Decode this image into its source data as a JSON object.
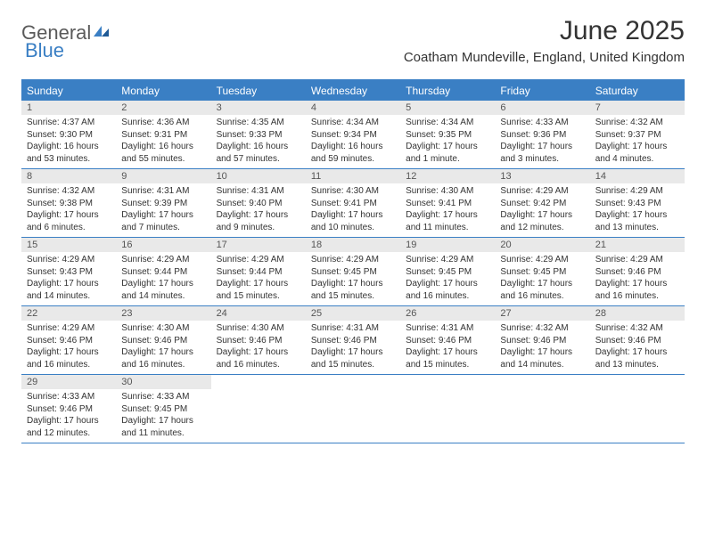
{
  "logo": {
    "text1": "General",
    "text2": "Blue"
  },
  "title": "June 2025",
  "location": "Coatham Mundeville, England, United Kingdom",
  "colors": {
    "accent": "#3a7fc4",
    "dayBg": "#e9e9e9",
    "text": "#333333",
    "white": "#ffffff"
  },
  "dayNames": [
    "Sunday",
    "Monday",
    "Tuesday",
    "Wednesday",
    "Thursday",
    "Friday",
    "Saturday"
  ],
  "weeks": [
    [
      {
        "n": "1",
        "sr": "4:37 AM",
        "ss": "9:30 PM",
        "dl": "16 hours and 53 minutes."
      },
      {
        "n": "2",
        "sr": "4:36 AM",
        "ss": "9:31 PM",
        "dl": "16 hours and 55 minutes."
      },
      {
        "n": "3",
        "sr": "4:35 AM",
        "ss": "9:33 PM",
        "dl": "16 hours and 57 minutes."
      },
      {
        "n": "4",
        "sr": "4:34 AM",
        "ss": "9:34 PM",
        "dl": "16 hours and 59 minutes."
      },
      {
        "n": "5",
        "sr": "4:34 AM",
        "ss": "9:35 PM",
        "dl": "17 hours and 1 minute."
      },
      {
        "n": "6",
        "sr": "4:33 AM",
        "ss": "9:36 PM",
        "dl": "17 hours and 3 minutes."
      },
      {
        "n": "7",
        "sr": "4:32 AM",
        "ss": "9:37 PM",
        "dl": "17 hours and 4 minutes."
      }
    ],
    [
      {
        "n": "8",
        "sr": "4:32 AM",
        "ss": "9:38 PM",
        "dl": "17 hours and 6 minutes."
      },
      {
        "n": "9",
        "sr": "4:31 AM",
        "ss": "9:39 PM",
        "dl": "17 hours and 7 minutes."
      },
      {
        "n": "10",
        "sr": "4:31 AM",
        "ss": "9:40 PM",
        "dl": "17 hours and 9 minutes."
      },
      {
        "n": "11",
        "sr": "4:30 AM",
        "ss": "9:41 PM",
        "dl": "17 hours and 10 minutes."
      },
      {
        "n": "12",
        "sr": "4:30 AM",
        "ss": "9:41 PM",
        "dl": "17 hours and 11 minutes."
      },
      {
        "n": "13",
        "sr": "4:29 AM",
        "ss": "9:42 PM",
        "dl": "17 hours and 12 minutes."
      },
      {
        "n": "14",
        "sr": "4:29 AM",
        "ss": "9:43 PM",
        "dl": "17 hours and 13 minutes."
      }
    ],
    [
      {
        "n": "15",
        "sr": "4:29 AM",
        "ss": "9:43 PM",
        "dl": "17 hours and 14 minutes."
      },
      {
        "n": "16",
        "sr": "4:29 AM",
        "ss": "9:44 PM",
        "dl": "17 hours and 14 minutes."
      },
      {
        "n": "17",
        "sr": "4:29 AM",
        "ss": "9:44 PM",
        "dl": "17 hours and 15 minutes."
      },
      {
        "n": "18",
        "sr": "4:29 AM",
        "ss": "9:45 PM",
        "dl": "17 hours and 15 minutes."
      },
      {
        "n": "19",
        "sr": "4:29 AM",
        "ss": "9:45 PM",
        "dl": "17 hours and 16 minutes."
      },
      {
        "n": "20",
        "sr": "4:29 AM",
        "ss": "9:45 PM",
        "dl": "17 hours and 16 minutes."
      },
      {
        "n": "21",
        "sr": "4:29 AM",
        "ss": "9:46 PM",
        "dl": "17 hours and 16 minutes."
      }
    ],
    [
      {
        "n": "22",
        "sr": "4:29 AM",
        "ss": "9:46 PM",
        "dl": "17 hours and 16 minutes."
      },
      {
        "n": "23",
        "sr": "4:30 AM",
        "ss": "9:46 PM",
        "dl": "17 hours and 16 minutes."
      },
      {
        "n": "24",
        "sr": "4:30 AM",
        "ss": "9:46 PM",
        "dl": "17 hours and 16 minutes."
      },
      {
        "n": "25",
        "sr": "4:31 AM",
        "ss": "9:46 PM",
        "dl": "17 hours and 15 minutes."
      },
      {
        "n": "26",
        "sr": "4:31 AM",
        "ss": "9:46 PM",
        "dl": "17 hours and 15 minutes."
      },
      {
        "n": "27",
        "sr": "4:32 AM",
        "ss": "9:46 PM",
        "dl": "17 hours and 14 minutes."
      },
      {
        "n": "28",
        "sr": "4:32 AM",
        "ss": "9:46 PM",
        "dl": "17 hours and 13 minutes."
      }
    ],
    [
      {
        "n": "29",
        "sr": "4:33 AM",
        "ss": "9:46 PM",
        "dl": "17 hours and 12 minutes."
      },
      {
        "n": "30",
        "sr": "4:33 AM",
        "ss": "9:45 PM",
        "dl": "17 hours and 11 minutes."
      },
      null,
      null,
      null,
      null,
      null
    ]
  ],
  "labels": {
    "sunrise": "Sunrise:",
    "sunset": "Sunset:",
    "daylight": "Daylight:"
  },
  "typography": {
    "title_fontsize": 30,
    "location_fontsize": 15,
    "dayheader_fontsize": 12,
    "cell_fontsize": 10
  }
}
